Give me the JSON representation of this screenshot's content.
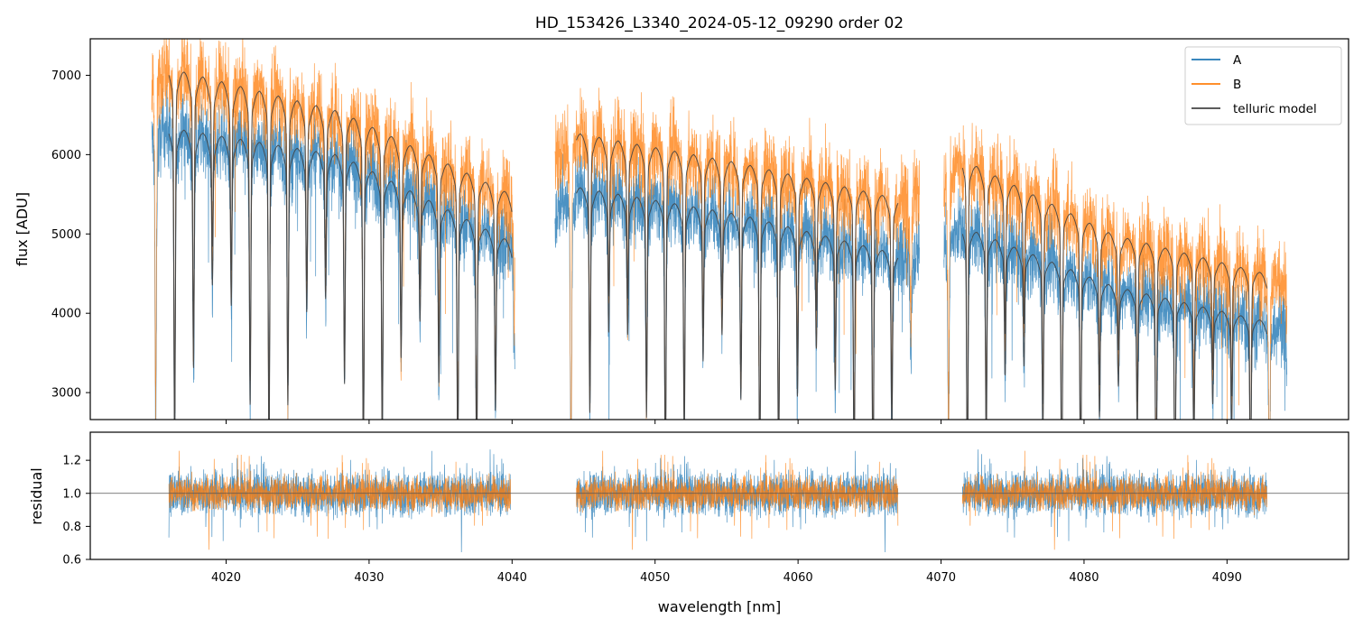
{
  "chart_data": [
    {
      "type": "line",
      "panel": "top",
      "title": "HD_153426_L3340_2024-05-12_09290  order 02",
      "xlabel": "",
      "ylabel": "flux [ADU]",
      "xlim": [
        4010.5,
        4098.5
      ],
      "ylim": [
        2660,
        7460
      ],
      "x_ticks": [
        4020,
        4030,
        4040,
        4050,
        4060,
        4070,
        4080,
        4090
      ],
      "y_ticks": [
        3000,
        4000,
        5000,
        6000,
        7000
      ],
      "y_tick_labels": [
        "3000",
        "4000",
        "5000",
        "6000",
        "7000"
      ],
      "legend_position": "top-right",
      "segments": [
        {
          "x_start": 4014.8,
          "x_end": 4040.2
        },
        {
          "x_start": 4043.0,
          "x_end": 4068.5
        },
        {
          "x_start": 4070.2,
          "x_end": 4094.2
        }
      ],
      "telluric_segments": [
        {
          "x_start": 4016.0,
          "x_end": 4040.0
        },
        {
          "x_start": 4044.5,
          "x_end": 4067.0
        },
        {
          "x_start": 4071.5,
          "x_end": 4092.8
        }
      ],
      "series": [
        {
          "name": "A",
          "color": "#1f77b4",
          "continuum": [
            [
              4016,
              6350
            ],
            [
              4028,
              6000
            ],
            [
              4040,
              4900
            ],
            [
              4044.5,
              5600
            ],
            [
              4056,
              5250
            ],
            [
              4067,
              4750
            ],
            [
              4071.5,
              5100
            ],
            [
              4082,
              4350
            ],
            [
              4092.8,
              3900
            ]
          ],
          "noise": 420
        },
        {
          "name": "B",
          "color": "#ff7f0e",
          "continuum": [
            [
              4016,
              7100
            ],
            [
              4028,
              6550
            ],
            [
              4040,
              5500
            ],
            [
              4044.5,
              6280
            ],
            [
              4056,
              5900
            ],
            [
              4067,
              5450
            ],
            [
              4071.5,
              5950
            ],
            [
              4082,
              5000
            ],
            [
              4092.8,
              4500
            ]
          ],
          "noise": 480
        },
        {
          "name": "telluric model",
          "color": "#444444"
        }
      ]
    },
    {
      "type": "line",
      "panel": "bottom",
      "xlabel": "wavelength [nm]",
      "ylabel": "residual",
      "xlim": [
        4010.5,
        4098.5
      ],
      "ylim": [
        0.6,
        1.37
      ],
      "x_ticks": [
        4020,
        4030,
        4040,
        4050,
        4060,
        4070,
        4080,
        4090
      ],
      "x_tick_labels": [
        "4020",
        "4030",
        "4040",
        "4050",
        "4060",
        "4070",
        "4080",
        "4090"
      ],
      "y_ticks": [
        0.6,
        0.8,
        1.0,
        1.2
      ],
      "y_tick_labels": [
        "0.6",
        "0.8",
        "1.0",
        "1.2"
      ],
      "reference_line": 1.0,
      "segments": [
        {
          "x_start": 4016.0,
          "x_end": 4039.9
        },
        {
          "x_start": 4044.5,
          "x_end": 4067.0
        },
        {
          "x_start": 4071.5,
          "x_end": 4092.8
        }
      ],
      "series": [
        {
          "name": "A",
          "color": "#1f77b4",
          "center": 1.0,
          "spread": 0.12
        },
        {
          "name": "B",
          "color": "#ff7f0e",
          "center": 1.0,
          "spread": 0.09
        }
      ]
    }
  ]
}
